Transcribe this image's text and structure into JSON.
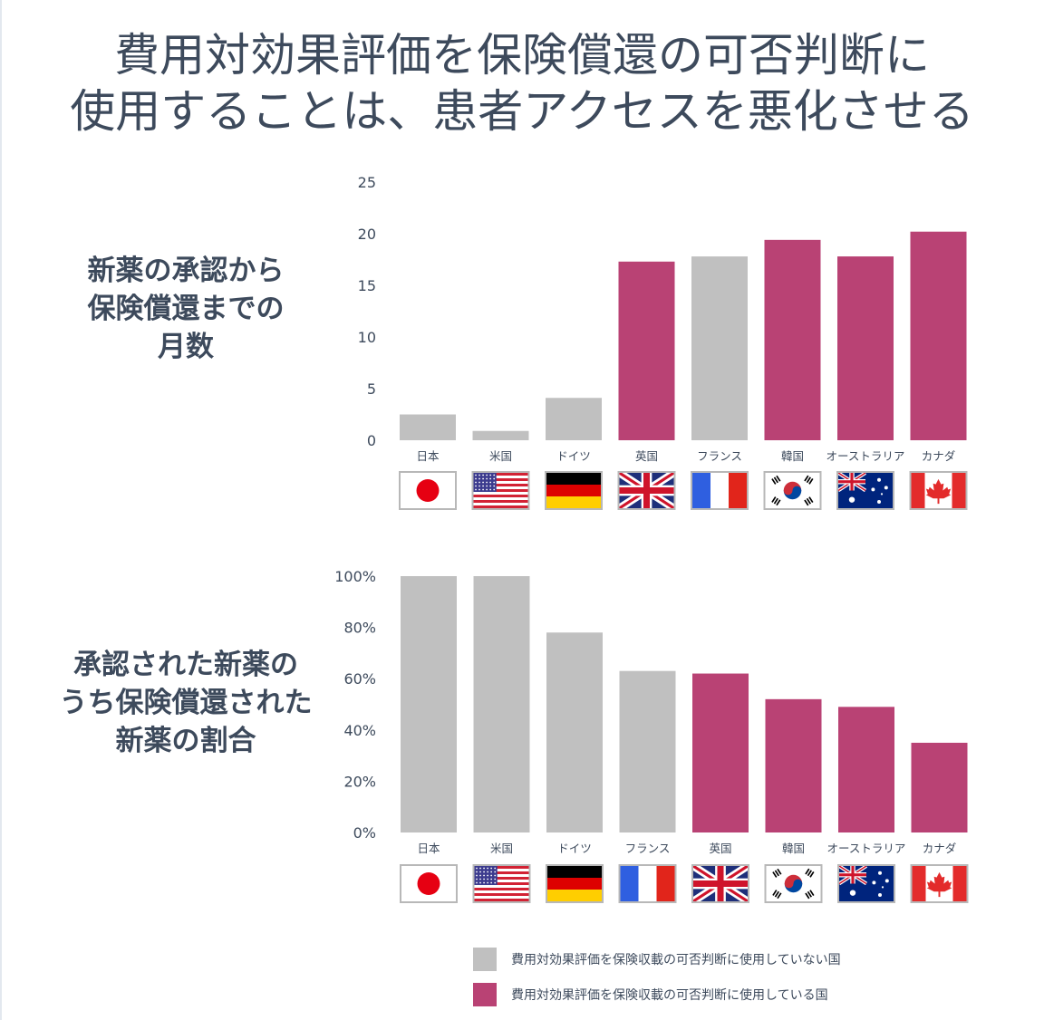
{
  "title": {
    "line1": "費用対効果評価を保険償還の可否判断に",
    "line2": "使用することは、患者アクセスを悪化させる"
  },
  "colors": {
    "gray": "#c0c0c0",
    "magenta": "#b94274",
    "text": "#3d4a5c"
  },
  "legend": {
    "items": [
      {
        "label": "費用対効果評価を保険収載の可否判断に使用していない国",
        "color": "#c0c0c0"
      },
      {
        "label": "費用対効果評価を保険収載の可否判断に使用している国",
        "color": "#b94274"
      }
    ]
  },
  "chart_data": [
    {
      "type": "bar",
      "label_lines": [
        "新薬の承認から",
        "保険償還までの",
        "月数"
      ],
      "yticks": [
        "0",
        "5",
        "10",
        "15",
        "20",
        "25"
      ],
      "ylim": [
        0,
        25
      ],
      "grid": false,
      "categories": [
        "日本",
        "米国",
        "ドイツ",
        "英国",
        "フランス",
        "韓国",
        "オーストラリア",
        "カナダ"
      ],
      "flags": [
        "japan",
        "usa",
        "germany",
        "uk",
        "france",
        "korea",
        "australia",
        "canada"
      ],
      "values": [
        2.5,
        0.9,
        4.1,
        17.3,
        17.8,
        19.4,
        17.8,
        20.2
      ],
      "uses_cea": [
        false,
        false,
        false,
        true,
        false,
        true,
        true,
        true
      ]
    },
    {
      "type": "bar",
      "label_lines": [
        "承認された新薬の",
        "うち保険償還された",
        "新薬の割合"
      ],
      "yticks": [
        "0%",
        "20%",
        "40%",
        "60%",
        "80%",
        "100%"
      ],
      "ylim": [
        0,
        100
      ],
      "grid": false,
      "categories": [
        "日本",
        "米国",
        "ドイツ",
        "フランス",
        "英国",
        "韓国",
        "オーストラリア",
        "カナダ"
      ],
      "flags": [
        "japan",
        "usa",
        "germany",
        "france",
        "uk",
        "korea",
        "australia",
        "canada"
      ],
      "values": [
        100,
        100,
        78,
        63,
        62,
        52,
        49,
        35
      ],
      "uses_cea": [
        false,
        false,
        false,
        false,
        true,
        true,
        true,
        true
      ]
    }
  ]
}
